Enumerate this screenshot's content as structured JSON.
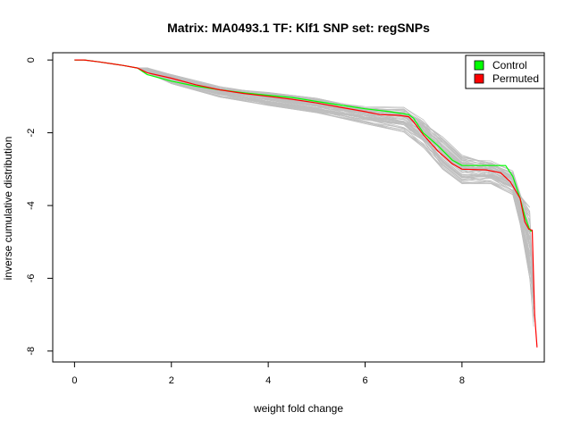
{
  "chart_data": {
    "type": "line",
    "title": "Matrix: MA0493.1 TF: Klf1 SNP set: regSNPs",
    "xlabel": "weight fold change",
    "ylabel": "inverse cumulative distribution",
    "xlim": [
      -0.45,
      9.7
    ],
    "ylim": [
      -8.3,
      0.2
    ],
    "xticks": [
      0,
      2,
      4,
      6,
      8
    ],
    "yticks": [
      0,
      -2,
      -4,
      -6,
      -8
    ],
    "grid": false,
    "legend_position": "top-right",
    "colors": {
      "control": "#00ff00",
      "permuted": "#ff0000",
      "background_lines": "#bebebe"
    },
    "background_band": {
      "x": [
        1.5,
        2.0,
        3.0,
        4.0,
        5.0,
        6.0,
        6.8,
        7.2,
        7.6,
        8.0,
        8.6,
        9.05,
        9.2,
        9.4
      ],
      "upper": [
        -0.2,
        -0.4,
        -0.72,
        -0.88,
        -1.05,
        -1.25,
        -1.3,
        -1.6,
        -2.1,
        -2.6,
        -2.75,
        -3.05,
        -3.6,
        -4.05
      ],
      "lower": [
        -0.35,
        -0.65,
        -1.02,
        -1.25,
        -1.45,
        -1.75,
        -1.98,
        -2.4,
        -3.0,
        -3.4,
        -3.4,
        -3.7,
        -4.5,
        -6.0
      ],
      "line_count": 60
    },
    "series": [
      {
        "name": "Control",
        "x": [
          0,
          0.2,
          0.5,
          1.0,
          1.3,
          1.5,
          2.0,
          2.5,
          3.0,
          3.5,
          4.0,
          4.5,
          5.0,
          5.5,
          6.0,
          6.5,
          6.9,
          7.0,
          7.2,
          7.5,
          7.8,
          8.0,
          8.3,
          8.6,
          8.9,
          9.05,
          9.2,
          9.3,
          9.38,
          9.42,
          9.45
        ],
        "y": [
          0,
          0,
          -0.05,
          -0.15,
          -0.22,
          -0.4,
          -0.58,
          -0.72,
          -0.82,
          -0.9,
          -0.97,
          -1.03,
          -1.14,
          -1.24,
          -1.34,
          -1.42,
          -1.5,
          -1.6,
          -2.0,
          -2.35,
          -2.75,
          -2.9,
          -2.9,
          -2.9,
          -2.9,
          -3.2,
          -3.8,
          -4.3,
          -4.6,
          -4.7,
          -4.7
        ]
      },
      {
        "name": "Permuted",
        "x": [
          0,
          0.2,
          0.5,
          1.0,
          1.3,
          1.5,
          2.0,
          2.5,
          3.0,
          3.5,
          4.0,
          4.5,
          5.0,
          5.5,
          6.0,
          6.3,
          6.7,
          6.9,
          7.0,
          7.2,
          7.5,
          7.8,
          8.0,
          8.5,
          8.8,
          9.0,
          9.2,
          9.3,
          9.38,
          9.45,
          9.5,
          9.55
        ],
        "y": [
          0,
          0,
          -0.05,
          -0.15,
          -0.22,
          -0.35,
          -0.5,
          -0.68,
          -0.82,
          -0.92,
          -1.0,
          -1.08,
          -1.18,
          -1.3,
          -1.42,
          -1.5,
          -1.52,
          -1.56,
          -1.7,
          -2.05,
          -2.5,
          -2.85,
          -3.0,
          -3.02,
          -3.1,
          -3.35,
          -3.8,
          -4.45,
          -4.65,
          -4.68,
          -7.0,
          -7.9
        ]
      }
    ]
  }
}
